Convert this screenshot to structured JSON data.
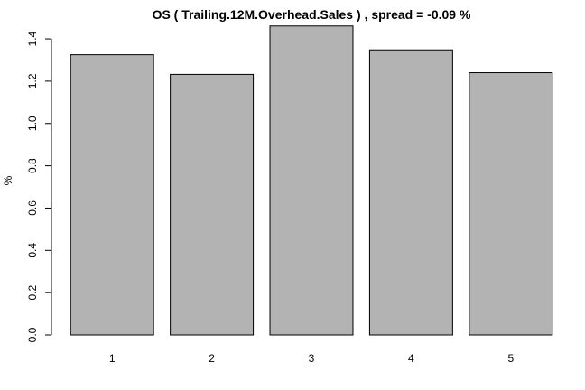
{
  "chart_data": {
    "type": "bar",
    "title": "OS ( Trailing.12M.Overhead.Sales ) , spread = -0.09 %",
    "xlabel": "",
    "ylabel": "%",
    "categories": [
      "1",
      "2",
      "3",
      "4",
      "5"
    ],
    "values": [
      1.325,
      1.232,
      1.461,
      1.348,
      1.24
    ],
    "ylim": [
      0,
      1.46
    ],
    "yticks": [
      "0.0",
      "0.2",
      "0.4",
      "0.6",
      "0.8",
      "1.0",
      "1.2",
      "1.4"
    ],
    "bar_color": "#b3b3b3",
    "grid": false,
    "legend": "none"
  }
}
